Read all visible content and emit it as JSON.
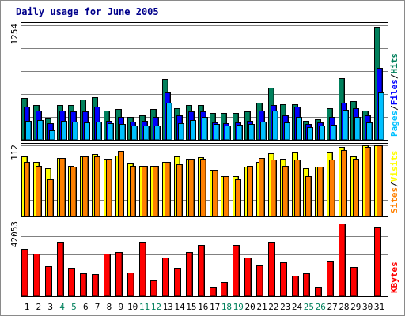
{
  "chart_data": {
    "type": "bar",
    "title": "Daily usage for June 2005",
    "categories": [
      "1",
      "2",
      "3",
      "4",
      "5",
      "6",
      "7",
      "8",
      "9",
      "10",
      "11",
      "12",
      "13",
      "14",
      "15",
      "16",
      "17",
      "18",
      "19",
      "20",
      "21",
      "22",
      "23",
      "24",
      "25",
      "26",
      "27",
      "28",
      "29",
      "30",
      "31"
    ],
    "weekend_days": [
      "4",
      "5",
      "11",
      "12",
      "18",
      "19",
      "25",
      "26"
    ],
    "panels": [
      {
        "id": "pages-files-hits",
        "ymax_label": "1254",
        "ymax": 1254,
        "legend": [
          {
            "text": "Pages",
            "color": "#00c0ff"
          },
          {
            "text": "/",
            "color": "#000000"
          },
          {
            "text": "Files",
            "color": "#0000ff"
          },
          {
            "text": "/",
            "color": "#000000"
          },
          {
            "text": "Hits",
            "color": "#00805c"
          }
        ],
        "series": [
          {
            "name": "Hits",
            "color": "#00805c",
            "values": [
              451,
              379,
              244,
              379,
              379,
              442,
              460,
              316,
              334,
              253,
              262,
              334,
              659,
              343,
              379,
              379,
              289,
              289,
              289,
              307,
              406,
              568,
              388,
              388,
              208,
              226,
              343,
              668,
              424,
              316,
              1227
            ]
          },
          {
            "name": "Files",
            "color": "#0000ff",
            "values": [
              361,
              316,
              181,
              316,
              307,
              307,
              361,
              208,
              253,
              199,
              208,
              253,
              514,
              262,
              307,
              307,
              190,
              181,
              190,
              208,
              316,
              379,
              262,
              361,
              172,
              190,
              253,
              406,
              343,
              262,
              784
            ]
          },
          {
            "name": "Pages",
            "color": "#00c0ff",
            "values": [
              208,
              217,
              99,
              208,
              199,
              190,
              199,
              181,
              172,
              154,
              154,
              154,
              406,
              181,
              217,
              253,
              172,
              154,
              163,
              172,
              199,
              316,
              190,
              253,
              136,
              154,
              163,
              325,
              253,
              190,
              514
            ]
          }
        ]
      },
      {
        "id": "sites-visits",
        "ymax_label": "112",
        "ymax": 112,
        "legend": [
          {
            "text": "Sites",
            "color": "#ff8000"
          },
          {
            "text": "/",
            "color": "#000000"
          },
          {
            "text": "Visits",
            "color": "#ffff00"
          }
        ],
        "series": [
          {
            "name": "Visits",
            "color": "#ffff00",
            "values": [
              95,
              86,
              76,
              92,
              80,
              95,
              98,
              91,
              96,
              85,
              80,
              80,
              86,
              95,
              91,
              93,
              74,
              63,
              63,
              78,
              86,
              100,
              91,
              101,
              76,
              78,
              101,
              109,
              95,
              112,
              112
            ]
          },
          {
            "name": "Sites",
            "color": "#ff8000",
            "values": [
              86,
              80,
              58,
              92,
              79,
              94,
              94,
              91,
              103,
              80,
              80,
              80,
              86,
              82,
              91,
              91,
              74,
              63,
              58,
              80,
              92,
              89,
              80,
              89,
              63,
              78,
              89,
              104,
              91,
              110,
              112
            ]
          }
        ]
      },
      {
        "id": "kbytes",
        "ymax_label": "42053",
        "ymax": 42053,
        "legend": [
          {
            "text": "KBytes",
            "color": "#ff0000"
          }
        ],
        "series": [
          {
            "name": "KBytes",
            "color": "#ff0000",
            "values": [
              27343,
              24563,
              17596,
              31498,
              16628,
              13303,
              12915,
              24563,
              25535,
              13857,
              31498,
              9289,
              22500,
              16628,
              25535,
              29837,
              5407,
              8281,
              29837,
              22500,
              18013,
              31498,
              19814,
              11945,
              13303,
              5407,
              20229,
              42053,
              16766,
              0,
              40390
            ]
          }
        ]
      }
    ]
  }
}
